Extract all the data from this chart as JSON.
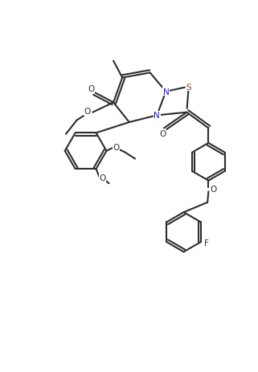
{
  "bg": "#ffffff",
  "bc": "#2d2d2d",
  "N_color": "#1a1acd",
  "S_color": "#8b4513",
  "lw": 1.5,
  "xlim": [
    0,
    10
  ],
  "ylim": [
    0,
    14.5
  ],
  "figsize": [
    3.21,
    4.64
  ],
  "dpi": 100
}
